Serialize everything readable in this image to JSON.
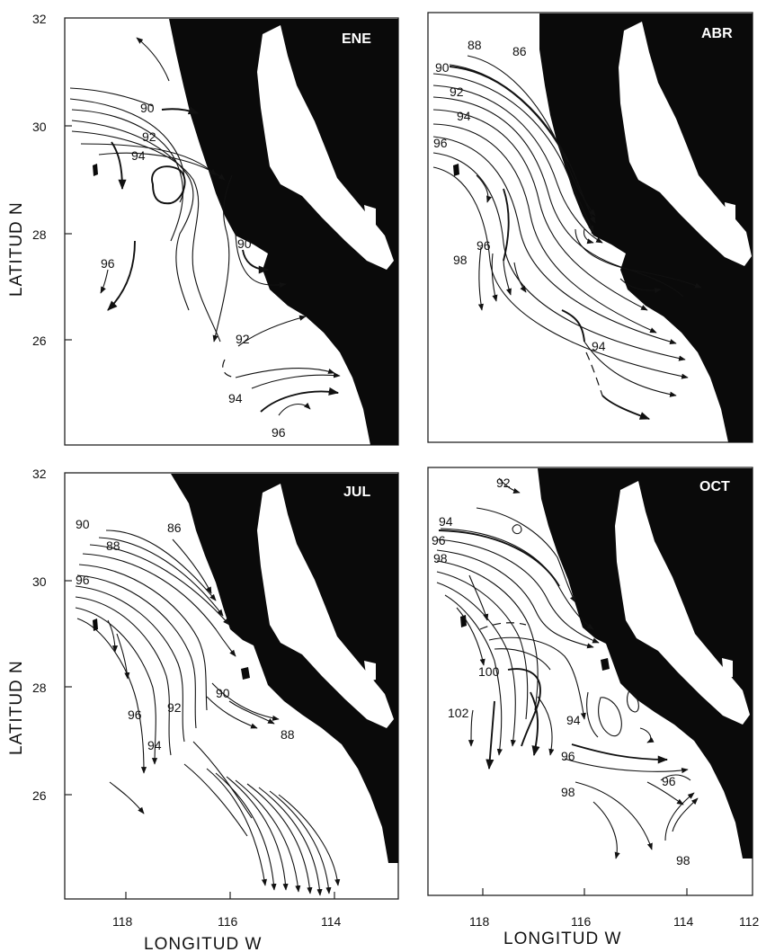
{
  "figure": {
    "panels": [
      {
        "id": "ene",
        "label": "ENE",
        "contour_labels": [
          "90",
          "92",
          "94",
          "96",
          "90",
          "92",
          "94",
          "96"
        ]
      },
      {
        "id": "abr",
        "label": "ABR",
        "contour_labels": [
          "88",
          "86",
          "90",
          "92",
          "94",
          "96",
          "96",
          "98",
          "94"
        ]
      },
      {
        "id": "jul",
        "label": "JUL",
        "contour_labels": [
          "90",
          "88",
          "86",
          "96",
          "96",
          "92",
          "90",
          "94",
          "88"
        ]
      },
      {
        "id": "oct",
        "label": "OCT",
        "contour_labels": [
          "92",
          "94",
          "96",
          "98",
          "100",
          "102",
          "94",
          "96",
          "96",
          "98",
          "98"
        ]
      }
    ],
    "axes": {
      "latitude_title": "LATITUD N",
      "longitude_title": "LONGITUD W",
      "lat_ticks": [
        "32",
        "30",
        "28",
        "26"
      ],
      "lon_ticks_left": [
        "118",
        "116",
        "114"
      ],
      "lon_ticks_right": [
        "118",
        "116",
        "114",
        "112"
      ]
    }
  }
}
